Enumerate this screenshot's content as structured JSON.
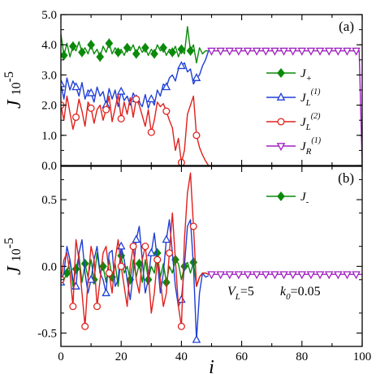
{
  "chart_data": {
    "type": "line",
    "x_label": "i",
    "y_label_var": "J",
    "y_label_rest": "10",
    "y_label_exp": "-5",
    "x_ticks": [
      "0",
      "20",
      "40",
      "60",
      "80",
      "100"
    ],
    "x_tick_values": [
      0,
      20,
      40,
      60,
      80,
      100
    ],
    "xlim": [
      0,
      100
    ],
    "panels": [
      {
        "label": "(a)",
        "ylim": [
          0,
          5
        ],
        "y_ticks": [
          "0.0",
          "1.0",
          "2.0",
          "3.0",
          "4.0",
          "5.0"
        ],
        "y_tick_values": [
          0,
          1,
          2,
          3,
          4,
          5
        ],
        "series": [
          {
            "name": "J+",
            "legend_main": "J",
            "legend_sub": "+",
            "legend_sup": "",
            "color": "#0a8a0a",
            "marker": "diamond",
            "x": [
              0,
              1,
              2,
              3,
              4,
              5,
              6,
              7,
              8,
              9,
              10,
              11,
              12,
              13,
              14,
              15,
              16,
              17,
              18,
              19,
              20,
              21,
              22,
              23,
              24,
              25,
              26,
              27,
              28,
              29,
              30,
              31,
              32,
              33,
              34,
              35,
              36,
              37,
              38,
              39,
              40,
              41,
              42,
              43,
              44,
              45,
              46,
              47,
              48,
              49
            ],
            "y": [
              4.35,
              3.65,
              4.05,
              3.6,
              3.95,
              3.8,
              4.1,
              3.75,
              3.9,
              3.7,
              4.0,
              3.7,
              3.85,
              3.6,
              3.95,
              3.75,
              4.05,
              3.7,
              3.9,
              3.75,
              3.85,
              3.65,
              3.9,
              3.8,
              4.0,
              3.7,
              3.95,
              3.75,
              3.9,
              3.65,
              3.85,
              3.7,
              4.0,
              3.8,
              3.9,
              3.65,
              3.85,
              3.75,
              3.95,
              3.6,
              3.85,
              3.7,
              4.6,
              3.8,
              4.0,
              3.4,
              3.9,
              3.7,
              3.8,
              3.8
            ],
            "markers_x": [
              1,
              4,
              7,
              10,
              13,
              16,
              19,
              22,
              25,
              28,
              31,
              34,
              37,
              40,
              43
            ]
          },
          {
            "name": "JL(1)",
            "legend_main": "J",
            "legend_sub": "L",
            "legend_sup": "(1)",
            "color": "#1f3fd6",
            "marker": "triangle-up",
            "x": [
              0,
              1,
              2,
              3,
              4,
              5,
              6,
              7,
              8,
              9,
              10,
              11,
              12,
              13,
              14,
              15,
              16,
              17,
              18,
              19,
              20,
              21,
              22,
              23,
              24,
              25,
              26,
              27,
              28,
              29,
              30,
              31,
              32,
              33,
              34,
              35,
              36,
              37,
              38,
              39,
              40,
              41,
              42,
              43,
              44,
              45,
              46,
              47,
              48,
              49
            ],
            "y": [
              2.7,
              2.2,
              2.9,
              2.5,
              2.8,
              2.6,
              2.3,
              2.75,
              2.2,
              2.5,
              2.4,
              2.1,
              2.6,
              2.3,
              2.45,
              2.0,
              2.55,
              2.2,
              2.5,
              1.95,
              2.45,
              2.15,
              2.3,
              2.0,
              2.4,
              2.2,
              2.1,
              1.95,
              2.35,
              1.9,
              2.2,
              2.0,
              2.5,
              2.3,
              2.7,
              2.6,
              2.9,
              3.0,
              2.8,
              3.2,
              3.3,
              3.4,
              3.1,
              3.2,
              2.7,
              2.9,
              3.0,
              3.3,
              3.5,
              3.8
            ],
            "markers_x": [
              0,
              5,
              10,
              15,
              20,
              25,
              30,
              35,
              40,
              45
            ]
          },
          {
            "name": "JL(2)",
            "legend_main": "J",
            "legend_sub": "L",
            "legend_sup": "(2)",
            "color": "#e0201c",
            "marker": "circle",
            "x": [
              0,
              1,
              2,
              3,
              4,
              5,
              6,
              7,
              8,
              9,
              10,
              11,
              12,
              13,
              14,
              15,
              16,
              17,
              18,
              19,
              20,
              21,
              22,
              23,
              24,
              25,
              26,
              27,
              28,
              29,
              30,
              31,
              32,
              33,
              34,
              35,
              36,
              37,
              38,
              39,
              40,
              41,
              42,
              43,
              44,
              45,
              46,
              47,
              48,
              49
            ],
            "y": [
              2.0,
              1.5,
              2.3,
              1.75,
              1.2,
              1.6,
              2.2,
              1.8,
              1.3,
              2.1,
              1.9,
              1.4,
              1.85,
              2.0,
              1.5,
              1.85,
              2.3,
              1.45,
              1.9,
              2.35,
              1.55,
              2.1,
              1.7,
              2.25,
              1.6,
              2.2,
              2.0,
              1.65,
              1.3,
              1.85,
              1.1,
              1.5,
              2.1,
              1.95,
              2.05,
              1.8,
              1.5,
              1.25,
              0.5,
              0.9,
              0.1,
              0.5,
              1.7,
              2.0,
              2.3,
              1.0,
              0.6,
              0.35,
              0.15,
              0.0
            ],
            "markers_x": [
              0,
              5,
              10,
              15,
              20,
              25,
              30,
              35,
              40,
              45
            ]
          },
          {
            "name": "JR(1)",
            "legend_main": "J",
            "legend_sub": "R",
            "legend_sup": "(1)",
            "color": "#a020c0",
            "marker": "triangle-down",
            "x": [
              49,
              50,
              55,
              60,
              65,
              70,
              75,
              80,
              85,
              90,
              95,
              99,
              100
            ],
            "y": [
              3.8,
              3.8,
              3.8,
              3.8,
              3.8,
              3.8,
              3.8,
              3.8,
              3.8,
              3.8,
              3.8,
              3.8,
              0.0
            ],
            "markers_x": [
              50,
              53,
              56,
              59,
              62,
              65,
              68,
              71,
              74,
              77,
              80,
              83,
              86,
              89,
              92,
              95,
              98
            ]
          }
        ]
      },
      {
        "label": "(b)",
        "ylim": [
          -0.6,
          0.75
        ],
        "y_ticks": [
          "-0.5",
          "0.0",
          "0.5"
        ],
        "y_tick_values": [
          -0.5,
          0,
          0.5
        ],
        "annotation_V": "V",
        "annotation_V_sub": "L",
        "annotation_V_val": "=5",
        "annotation_k": "k",
        "annotation_k_sub": "0",
        "annotation_k_val": "=0.05",
        "series": [
          {
            "name": "J-",
            "legend_main": "J",
            "legend_sub": "-",
            "legend_sup": "",
            "color": "#0a8a0a",
            "marker": "diamond",
            "x": [
              0,
              1,
              2,
              3,
              4,
              5,
              6,
              7,
              8,
              9,
              10,
              11,
              12,
              13,
              14,
              15,
              16,
              17,
              18,
              19,
              20,
              21,
              22,
              23,
              24,
              25,
              26,
              27,
              28,
              29,
              30,
              31,
              32,
              33,
              34,
              35,
              36,
              37,
              38,
              39,
              40,
              41,
              42,
              43,
              44,
              45,
              46,
              47,
              48,
              49
            ],
            "y": [
              -0.08,
              -0.1,
              -0.05,
              0.05,
              -0.15,
              -0.02,
              0.08,
              -0.12,
              0.02,
              -0.08,
              0.05,
              -0.1,
              0.1,
              -0.05,
              0.0,
              -0.12,
              0.05,
              -0.08,
              0.02,
              -0.15,
              0.08,
              -0.05,
              0.0,
              -0.1,
              0.05,
              -0.08,
              0.02,
              -0.12,
              0.05,
              -0.1,
              0.0,
              -0.05,
              0.1,
              -0.08,
              0.02,
              -0.12,
              0.0,
              -0.05,
              0.05,
              0.02,
              -0.1,
              0.0,
              0.03,
              -0.05,
              0.03,
              -0.15,
              -0.08,
              -0.05,
              -0.05,
              -0.06
            ],
            "markers_x": [
              2,
              5,
              8,
              11,
              14,
              17,
              20,
              23,
              26,
              29,
              32,
              35,
              38,
              41,
              44
            ]
          },
          {
            "name": "JL(1)",
            "color": "#1f3fd6",
            "marker": "triangle-up",
            "x": [
              0,
              1,
              2,
              3,
              4,
              5,
              6,
              7,
              8,
              9,
              10,
              11,
              12,
              13,
              14,
              15,
              16,
              17,
              18,
              19,
              20,
              21,
              22,
              23,
              24,
              25,
              26,
              27,
              28,
              29,
              30,
              31,
              32,
              33,
              34,
              35,
              36,
              37,
              38,
              39,
              40,
              41,
              42,
              43,
              44,
              45,
              46,
              47,
              48,
              49
            ],
            "y": [
              -0.12,
              -0.05,
              0.15,
              0.05,
              -0.1,
              -0.15,
              0.1,
              0.2,
              -0.05,
              -0.2,
              -0.1,
              0.05,
              0.15,
              -0.05,
              -0.1,
              -0.2,
              0.1,
              0.12,
              -0.15,
              -0.1,
              0.15,
              0.05,
              -0.1,
              -0.25,
              -0.05,
              0.2,
              0.3,
              0.05,
              -0.2,
              -0.1,
              0.1,
              0.25,
              0.05,
              -0.2,
              -0.05,
              0.2,
              0.35,
              0.1,
              -0.15,
              -0.3,
              -0.25,
              0.0,
              0.3,
              0.35,
              0.0,
              -0.55,
              -0.2,
              -0.05,
              -0.08,
              -0.07
            ],
            "markers_x": [
              0,
              5,
              10,
              15,
              20,
              25,
              30,
              35,
              40,
              45
            ]
          },
          {
            "name": "JL(2)",
            "color": "#e0201c",
            "marker": "circle",
            "x": [
              0,
              1,
              2,
              3,
              4,
              5,
              6,
              7,
              8,
              9,
              10,
              11,
              12,
              13,
              14,
              15,
              16,
              17,
              18,
              19,
              20,
              21,
              22,
              23,
              24,
              25,
              26,
              27,
              28,
              29,
              30,
              31,
              32,
              33,
              34,
              35,
              36,
              37,
              38,
              39,
              40,
              41,
              42,
              43,
              44,
              45,
              46,
              47,
              48,
              49
            ],
            "y": [
              -0.1,
              0.05,
              0.1,
              -0.05,
              -0.3,
              0.2,
              0.05,
              -0.2,
              -0.45,
              -0.1,
              0.15,
              0.05,
              -0.3,
              -0.1,
              0.1,
              0.15,
              -0.05,
              -0.2,
              0.05,
              0.2,
              0.0,
              -0.15,
              -0.3,
              0.0,
              0.15,
              -0.1,
              -0.2,
              0.05,
              0.15,
              -0.05,
              -0.35,
              -0.2,
              0.05,
              -0.1,
              -0.3,
              -0.2,
              0.1,
              0.4,
              0.05,
              -0.3,
              -0.45,
              0.2,
              0.55,
              0.7,
              0.3,
              -0.15,
              -0.08,
              -0.05,
              -0.05,
              -0.06
            ],
            "markers_x": [
              0,
              4,
              8,
              12,
              16,
              20,
              24,
              28,
              32,
              36,
              40,
              44
            ]
          },
          {
            "name": "JR(1)",
            "color": "#a020c0",
            "marker": "triangle-down",
            "x": [
              49,
              50,
              60,
              70,
              80,
              90,
              99,
              100
            ],
            "y": [
              -0.06,
              -0.06,
              -0.06,
              -0.06,
              -0.06,
              -0.06,
              -0.06,
              -0.06
            ],
            "markers_x": [
              50,
              53,
              56,
              59,
              62,
              65,
              68,
              71,
              74,
              77,
              80,
              83,
              86,
              89,
              92,
              95,
              98
            ]
          }
        ]
      }
    ]
  }
}
